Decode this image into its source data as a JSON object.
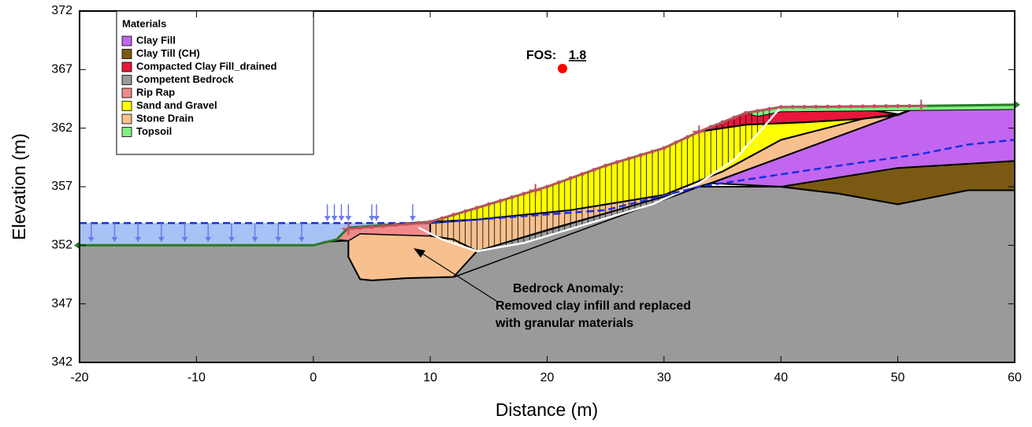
{
  "chart_data": {
    "type": "cross-section",
    "xlabel": "Distance (m)",
    "ylabel": "Elevation (m)",
    "xlim": [
      -20,
      60
    ],
    "ylim": [
      342,
      372
    ],
    "xticks": [
      -20,
      -10,
      0,
      10,
      20,
      30,
      40,
      50,
      60
    ],
    "yticks": [
      342,
      347,
      352,
      357,
      362,
      367,
      372
    ],
    "legend": {
      "title": "Materials",
      "items": [
        {
          "name": "Clay Fill",
          "color": "#c266f0"
        },
        {
          "name": "Clay Till (CH)",
          "color": "#7a5a12"
        },
        {
          "name": "Compacted Clay Fill_drained",
          "color": "#e8163a"
        },
        {
          "name": "Competent Bedrock",
          "color": "#9a9a9a"
        },
        {
          "name": "Rip Rap",
          "color": "#f08a8a"
        },
        {
          "name": "Sand and Gravel",
          "color": "#ffff00"
        },
        {
          "name": "Stone Drain",
          "color": "#f7c08e"
        },
        {
          "name": "Topsoil",
          "color": "#80f080"
        }
      ]
    },
    "fos": {
      "label": "FOS:",
      "value": 1.8
    },
    "annotation": [
      "Bedrock Anomaly:",
      "Removed clay infill and replaced",
      "with granular materials"
    ]
  }
}
